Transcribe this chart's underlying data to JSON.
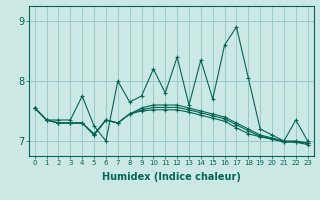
{
  "xlabel": "Humidex (Indice chaleur)",
  "x_ticks": [
    0,
    1,
    2,
    3,
    4,
    5,
    6,
    7,
    8,
    9,
    10,
    11,
    12,
    13,
    14,
    15,
    16,
    17,
    18,
    19,
    20,
    21,
    22,
    23
  ],
  "ylim": [
    6.75,
    9.25
  ],
  "yticks": [
    7,
    8,
    9
  ],
  "background_color": "#cce8e4",
  "grid_color": "#99cccc",
  "line_color": "#006655",
  "series": [
    [
      7.55,
      7.35,
      7.35,
      7.35,
      7.75,
      7.25,
      7.0,
      8.0,
      7.65,
      7.75,
      8.2,
      7.8,
      8.4,
      7.6,
      8.35,
      7.7,
      8.6,
      8.9,
      8.05,
      7.2,
      7.1,
      7.0,
      7.35,
      7.0
    ],
    [
      7.55,
      7.35,
      7.3,
      7.3,
      7.3,
      7.1,
      7.35,
      7.3,
      7.45,
      7.55,
      7.6,
      7.6,
      7.6,
      7.55,
      7.5,
      7.45,
      7.4,
      7.3,
      7.2,
      7.1,
      7.05,
      7.0,
      7.0,
      6.97
    ],
    [
      7.55,
      7.35,
      7.3,
      7.3,
      7.3,
      7.1,
      7.35,
      7.3,
      7.45,
      7.5,
      7.52,
      7.52,
      7.52,
      7.48,
      7.43,
      7.38,
      7.33,
      7.22,
      7.12,
      7.07,
      7.03,
      6.98,
      6.98,
      6.94
    ],
    [
      7.55,
      7.35,
      7.3,
      7.3,
      7.3,
      7.12,
      7.35,
      7.3,
      7.45,
      7.52,
      7.56,
      7.56,
      7.56,
      7.52,
      7.47,
      7.42,
      7.37,
      7.27,
      7.17,
      7.08,
      7.04,
      6.99,
      6.99,
      6.96
    ]
  ]
}
